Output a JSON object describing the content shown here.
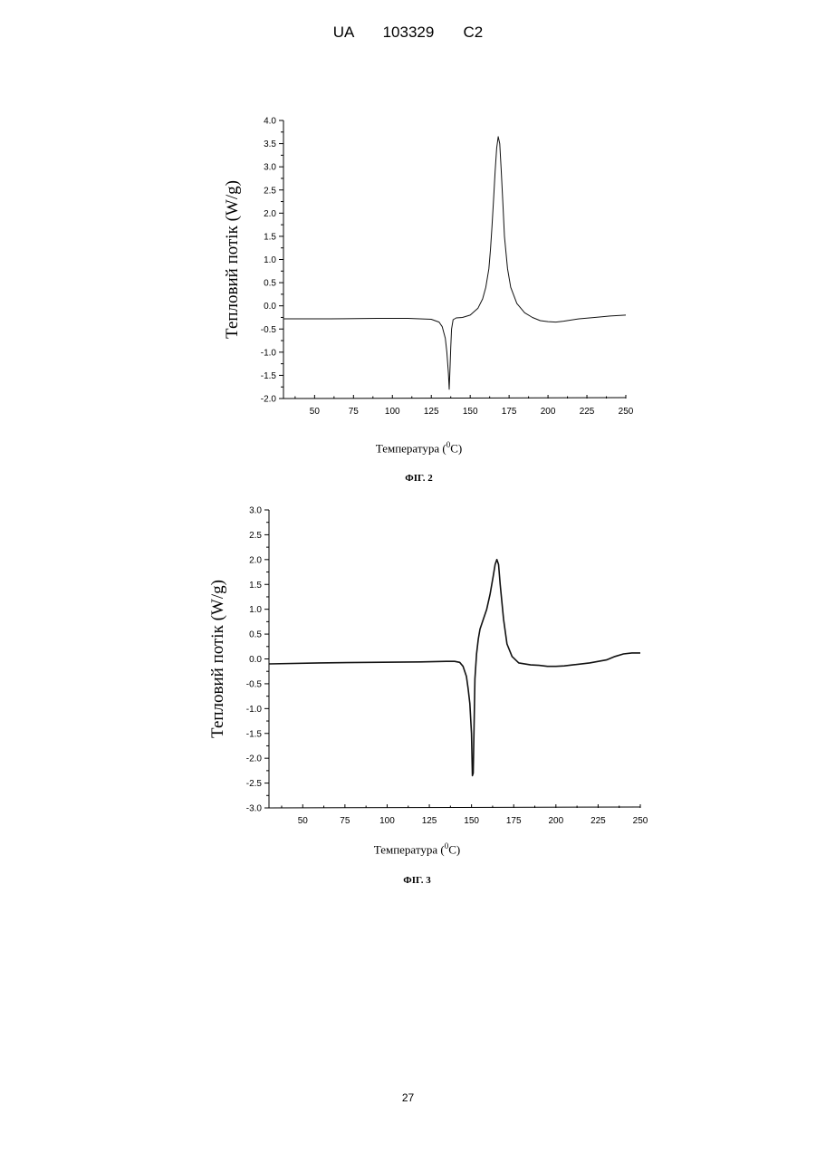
{
  "header": {
    "text": "UA   103329   C2"
  },
  "footer": {
    "page_number": "27"
  },
  "chart_data": [
    {
      "type": "line",
      "caption": "ФІГ. 2",
      "xlabel_text": "Температура (",
      "xlabel_sup": "0",
      "xlabel_unit": "C)",
      "ylabel": "Тепловий потік (W/g)",
      "xlim": [
        30,
        250
      ],
      "ylim": [
        -2.0,
        4.0
      ],
      "xticks": [
        50,
        75,
        100,
        125,
        150,
        175,
        200,
        225,
        250
      ],
      "yticks": [
        4.0,
        3.5,
        3.0,
        2.5,
        2.0,
        1.5,
        1.0,
        0.5,
        0.0,
        -0.5,
        -1.0,
        -1.5,
        -2.0
      ],
      "ytick_labels": [
        "4.0",
        "3.5",
        "3.0",
        "2.5",
        "2.0",
        "1.5",
        "1.0",
        "0.5",
        "0.0",
        "-0.5",
        "-1.0",
        "-1.5",
        "-2.0"
      ],
      "grid": false,
      "series": [
        {
          "x": [
            30,
            60,
            90,
            110,
            125,
            130,
            132,
            134,
            135,
            136,
            136.5,
            137,
            137.5,
            138,
            139,
            141,
            145,
            150,
            155,
            158,
            160,
            162,
            163,
            164,
            165,
            166,
            167,
            168,
            169,
            170,
            171,
            172,
            174,
            176,
            180,
            185,
            190,
            195,
            200,
            205,
            210,
            220,
            230,
            240,
            250
          ],
          "y": [
            -0.28,
            -0.28,
            -0.27,
            -0.27,
            -0.29,
            -0.35,
            -0.45,
            -0.7,
            -1.0,
            -1.45,
            -1.8,
            -1.4,
            -0.9,
            -0.5,
            -0.3,
            -0.26,
            -0.25,
            -0.2,
            -0.05,
            0.15,
            0.4,
            0.8,
            1.2,
            1.7,
            2.3,
            2.9,
            3.4,
            3.65,
            3.5,
            2.9,
            2.2,
            1.5,
            0.8,
            0.4,
            0.05,
            -0.15,
            -0.25,
            -0.32,
            -0.34,
            -0.35,
            -0.33,
            -0.28,
            -0.25,
            -0.22,
            -0.2
          ]
        }
      ]
    },
    {
      "type": "line",
      "caption": "ФІГ. 3",
      "xlabel_text": "Температура (",
      "xlabel_sup": "0",
      "xlabel_unit": "C)",
      "ylabel": "Тепловий потік (W/g)",
      "xlim": [
        30,
        250
      ],
      "ylim": [
        -3.0,
        3.0
      ],
      "xticks": [
        50,
        75,
        100,
        125,
        150,
        175,
        200,
        225,
        250
      ],
      "yticks": [
        3.0,
        2.5,
        2.0,
        1.5,
        1.0,
        0.5,
        0.0,
        -0.5,
        -1.0,
        -1.5,
        -2.0,
        -2.5,
        -3.0
      ],
      "ytick_labels": [
        "3.0",
        "2.5",
        "2.0",
        "1.5",
        "1.0",
        "0.5",
        "0.0",
        "-0.5",
        "-1.0",
        "-1.5",
        "-2.0",
        "-2.5",
        "-3.0"
      ],
      "grid": false,
      "series": [
        {
          "x": [
            30,
            60,
            90,
            120,
            135,
            140,
            143,
            145,
            147,
            148,
            149,
            150,
            150.5,
            151,
            151.5,
            152,
            153,
            154,
            155,
            157,
            159,
            161,
            163,
            164,
            165,
            166,
            167,
            169,
            171,
            174,
            178,
            185,
            190,
            195,
            200,
            205,
            210,
            220,
            230,
            235,
            240,
            245,
            250
          ],
          "y": [
            -0.1,
            -0.08,
            -0.07,
            -0.06,
            -0.05,
            -0.05,
            -0.07,
            -0.15,
            -0.35,
            -0.6,
            -0.9,
            -1.5,
            -2.35,
            -2.3,
            -1.4,
            -0.4,
            0.1,
            0.4,
            0.6,
            0.8,
            1.0,
            1.3,
            1.7,
            1.9,
            2.0,
            1.9,
            1.5,
            0.8,
            0.3,
            0.05,
            -0.08,
            -0.12,
            -0.13,
            -0.15,
            -0.15,
            -0.14,
            -0.12,
            -0.08,
            -0.02,
            0.05,
            0.1,
            0.12,
            0.12
          ]
        }
      ]
    }
  ]
}
